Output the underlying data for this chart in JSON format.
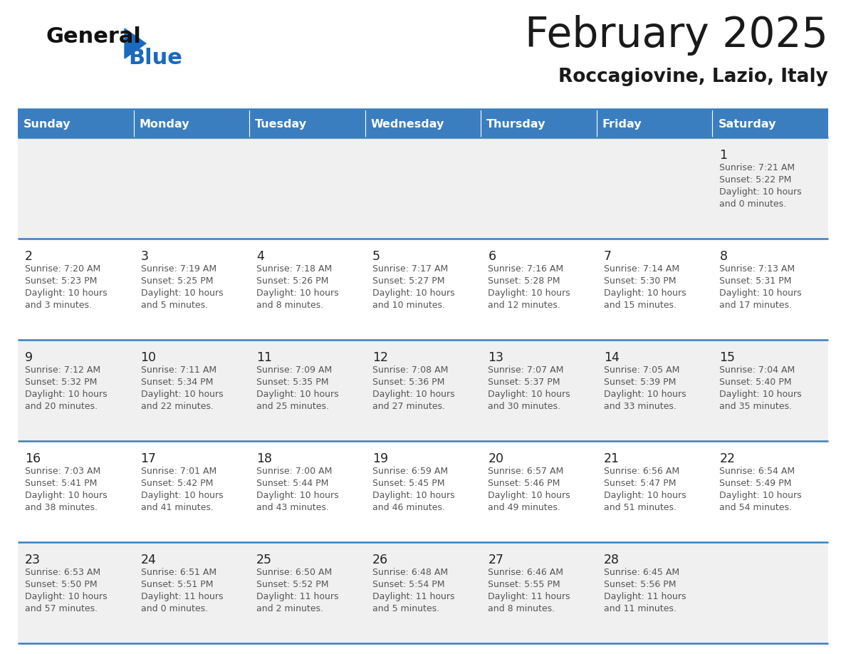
{
  "title": "February 2025",
  "subtitle": "Roccagiovine, Lazio, Italy",
  "header_bg": "#3a7ebf",
  "header_text_color": "#ffffff",
  "cell_bg_odd": "#f0f0f0",
  "cell_bg_even": "#ffffff",
  "day_names": [
    "Sunday",
    "Monday",
    "Tuesday",
    "Wednesday",
    "Thursday",
    "Friday",
    "Saturday"
  ],
  "line_color": "#3a7ebf",
  "day_number_color": "#222222",
  "info_text_color": "#555555",
  "title_color": "#1a1a1a",
  "subtitle_color": "#1a1a1a",
  "logo_general_color": "#111111",
  "logo_blue_color": "#1a6abf",
  "calendar_data": [
    [
      null,
      null,
      null,
      null,
      null,
      null,
      {
        "day": 1,
        "sunrise": "7:21 AM",
        "sunset": "5:22 PM",
        "daylight": "10 hours",
        "daylight2": "and 0 minutes."
      }
    ],
    [
      {
        "day": 2,
        "sunrise": "7:20 AM",
        "sunset": "5:23 PM",
        "daylight": "10 hours",
        "daylight2": "and 3 minutes."
      },
      {
        "day": 3,
        "sunrise": "7:19 AM",
        "sunset": "5:25 PM",
        "daylight": "10 hours",
        "daylight2": "and 5 minutes."
      },
      {
        "day": 4,
        "sunrise": "7:18 AM",
        "sunset": "5:26 PM",
        "daylight": "10 hours",
        "daylight2": "and 8 minutes."
      },
      {
        "day": 5,
        "sunrise": "7:17 AM",
        "sunset": "5:27 PM",
        "daylight": "10 hours",
        "daylight2": "and 10 minutes."
      },
      {
        "day": 6,
        "sunrise": "7:16 AM",
        "sunset": "5:28 PM",
        "daylight": "10 hours",
        "daylight2": "and 12 minutes."
      },
      {
        "day": 7,
        "sunrise": "7:14 AM",
        "sunset": "5:30 PM",
        "daylight": "10 hours",
        "daylight2": "and 15 minutes."
      },
      {
        "day": 8,
        "sunrise": "7:13 AM",
        "sunset": "5:31 PM",
        "daylight": "10 hours",
        "daylight2": "and 17 minutes."
      }
    ],
    [
      {
        "day": 9,
        "sunrise": "7:12 AM",
        "sunset": "5:32 PM",
        "daylight": "10 hours",
        "daylight2": "and 20 minutes."
      },
      {
        "day": 10,
        "sunrise": "7:11 AM",
        "sunset": "5:34 PM",
        "daylight": "10 hours",
        "daylight2": "and 22 minutes."
      },
      {
        "day": 11,
        "sunrise": "7:09 AM",
        "sunset": "5:35 PM",
        "daylight": "10 hours",
        "daylight2": "and 25 minutes."
      },
      {
        "day": 12,
        "sunrise": "7:08 AM",
        "sunset": "5:36 PM",
        "daylight": "10 hours",
        "daylight2": "and 27 minutes."
      },
      {
        "day": 13,
        "sunrise": "7:07 AM",
        "sunset": "5:37 PM",
        "daylight": "10 hours",
        "daylight2": "and 30 minutes."
      },
      {
        "day": 14,
        "sunrise": "7:05 AM",
        "sunset": "5:39 PM",
        "daylight": "10 hours",
        "daylight2": "and 33 minutes."
      },
      {
        "day": 15,
        "sunrise": "7:04 AM",
        "sunset": "5:40 PM",
        "daylight": "10 hours",
        "daylight2": "and 35 minutes."
      }
    ],
    [
      {
        "day": 16,
        "sunrise": "7:03 AM",
        "sunset": "5:41 PM",
        "daylight": "10 hours",
        "daylight2": "and 38 minutes."
      },
      {
        "day": 17,
        "sunrise": "7:01 AM",
        "sunset": "5:42 PM",
        "daylight": "10 hours",
        "daylight2": "and 41 minutes."
      },
      {
        "day": 18,
        "sunrise": "7:00 AM",
        "sunset": "5:44 PM",
        "daylight": "10 hours",
        "daylight2": "and 43 minutes."
      },
      {
        "day": 19,
        "sunrise": "6:59 AM",
        "sunset": "5:45 PM",
        "daylight": "10 hours",
        "daylight2": "and 46 minutes."
      },
      {
        "day": 20,
        "sunrise": "6:57 AM",
        "sunset": "5:46 PM",
        "daylight": "10 hours",
        "daylight2": "and 49 minutes."
      },
      {
        "day": 21,
        "sunrise": "6:56 AM",
        "sunset": "5:47 PM",
        "daylight": "10 hours",
        "daylight2": "and 51 minutes."
      },
      {
        "day": 22,
        "sunrise": "6:54 AM",
        "sunset": "5:49 PM",
        "daylight": "10 hours",
        "daylight2": "and 54 minutes."
      }
    ],
    [
      {
        "day": 23,
        "sunrise": "6:53 AM",
        "sunset": "5:50 PM",
        "daylight": "10 hours",
        "daylight2": "and 57 minutes."
      },
      {
        "day": 24,
        "sunrise": "6:51 AM",
        "sunset": "5:51 PM",
        "daylight": "11 hours",
        "daylight2": "and 0 minutes."
      },
      {
        "day": 25,
        "sunrise": "6:50 AM",
        "sunset": "5:52 PM",
        "daylight": "11 hours",
        "daylight2": "and 2 minutes."
      },
      {
        "day": 26,
        "sunrise": "6:48 AM",
        "sunset": "5:54 PM",
        "daylight": "11 hours",
        "daylight2": "and 5 minutes."
      },
      {
        "day": 27,
        "sunrise": "6:46 AM",
        "sunset": "5:55 PM",
        "daylight": "11 hours",
        "daylight2": "and 8 minutes."
      },
      {
        "day": 28,
        "sunrise": "6:45 AM",
        "sunset": "5:56 PM",
        "daylight": "11 hours",
        "daylight2": "and 11 minutes."
      },
      null
    ]
  ]
}
